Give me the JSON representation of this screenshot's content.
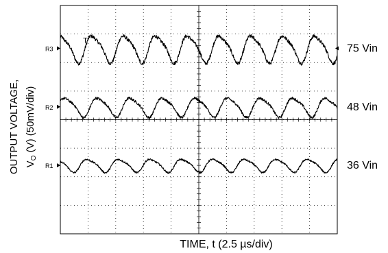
{
  "chart_data": {
    "type": "line",
    "xlabel": "TIME, t (2.5 µs/div)",
    "ylabel_line1": "OUTPUT VOLTAGE,",
    "ylabel_line2_pre": "V",
    "ylabel_line2_sub": "O",
    "ylabel_line2_post": " (V) (50mV/div)",
    "x_divisions": 10,
    "y_divisions": 8,
    "xlim_div": [
      0,
      10
    ],
    "grid": true,
    "series": [
      {
        "name": "75 Vin",
        "marker": "R3",
        "reference_div": 6.5,
        "amplitude_div": 0.45,
        "cycles": 8.7,
        "phase": 1.3,
        "color": "#000000"
      },
      {
        "name": "48 Vin",
        "marker": "R2",
        "reference_div": 4.45,
        "amplitude_div": 0.32,
        "cycles": 8.5,
        "phase": 0.4,
        "color": "#000000"
      },
      {
        "name": "36 Vin",
        "marker": "R1",
        "reference_div": 2.4,
        "amplitude_div": 0.22,
        "cycles": 8.8,
        "phase": 2.2,
        "color": "#000000"
      }
    ],
    "trigger_marker": "T"
  }
}
